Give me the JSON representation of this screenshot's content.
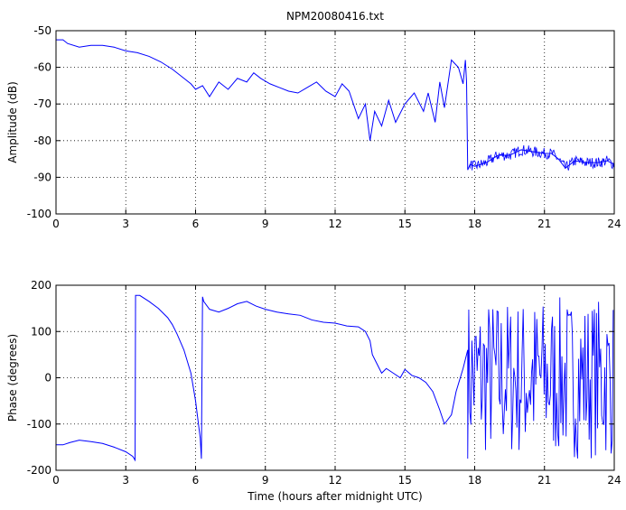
{
  "chart_data": [
    {
      "type": "line",
      "title": "NPM20080416.txt",
      "xlabel": "",
      "ylabel": "Amplitude (dB)",
      "xlim": [
        0,
        24
      ],
      "ylim": [
        -100,
        -50
      ],
      "xticks": [
        "0",
        "3",
        "6",
        "9",
        "12",
        "15",
        "18",
        "21",
        "24"
      ],
      "yticks": [
        "-50",
        "-60",
        "-70",
        "-80",
        "-90",
        "-100"
      ],
      "grid": true,
      "line_color": "#0000ff",
      "series": [
        {
          "x": [
            0,
            0.3,
            0.5,
            1,
            1.5,
            2,
            2.5,
            3,
            3.5,
            4,
            4.5,
            5,
            5.5,
            5.8,
            6,
            6.3,
            6.6,
            7,
            7.4,
            7.8,
            8.2,
            8.5,
            8.8,
            9.2,
            9.6,
            10,
            10.4,
            10.8,
            11.2,
            11.6,
            12,
            12.3,
            12.6,
            13,
            13.3,
            13.5,
            13.7,
            14,
            14.3,
            14.6,
            15,
            15.4,
            15.8,
            16,
            16.3,
            16.5,
            16.7,
            17,
            17.3,
            17.5,
            17.6,
            17.65,
            17.7,
            17.8,
            18,
            18.5,
            19,
            19.5,
            20,
            20.5,
            21,
            21.3,
            21.6,
            21.9,
            22.3,
            22.8,
            23.3,
            23.7,
            24
          ],
          "y": [
            -52.5,
            -52.5,
            -53.5,
            -54.5,
            -54,
            -54,
            -54.5,
            -55.5,
            -56,
            -57,
            -58.5,
            -60.5,
            -63,
            -64.5,
            -66,
            -65,
            -68,
            -64,
            -66,
            -63,
            -64,
            -61.5,
            -63,
            -64.5,
            -65.5,
            -66.5,
            -67,
            -65.5,
            -64,
            -66.5,
            -68,
            -64.5,
            -66.5,
            -74,
            -70,
            -80,
            -72,
            -76,
            -69,
            -75,
            -70,
            -67,
            -72,
            -67,
            -75,
            -64,
            -71,
            -58,
            -60,
            -64.5,
            -58,
            -64,
            -88,
            -86.5,
            -87,
            -86,
            -84,
            -84,
            -82.5,
            -83,
            -83.5,
            -83.5,
            -85,
            -87.5,
            -85.5,
            -86,
            -86,
            -85.5,
            -86.5
          ]
        }
      ]
    },
    {
      "type": "line",
      "title": "",
      "xlabel": "Time (hours after midnight UTC)",
      "ylabel": "Phase (degrees)",
      "xlim": [
        0,
        24
      ],
      "ylim": [
        -200,
        200
      ],
      "xticks": [
        "0",
        "3",
        "6",
        "9",
        "12",
        "15",
        "18",
        "21",
        "24"
      ],
      "yticks": [
        "200",
        "100",
        "0",
        "-100",
        "-200"
      ],
      "grid": true,
      "line_color": "#0000ff",
      "series": [
        {
          "x": [
            0,
            0.3,
            0.6,
            1,
            1.5,
            2,
            2.5,
            3,
            3.3,
            3.4,
            3.42,
            3.6,
            4,
            4.4,
            4.8,
            5,
            5.2,
            5.5,
            5.8,
            6,
            6.1,
            6.2,
            6.25,
            6.3,
            6.35,
            6.6,
            7,
            7.4,
            7.8,
            8.2,
            8.6,
            9,
            9.5,
            10,
            10.5,
            11,
            11.5,
            12,
            12.5,
            13,
            13.3,
            13.5,
            13.6,
            13.8,
            14,
            14.2,
            14.5,
            14.8,
            15,
            15.3,
            15.6,
            15.9,
            16.2,
            16.5,
            16.7,
            17,
            17.2,
            17.5,
            17.7
          ],
          "y": [
            -145,
            -145,
            -140,
            -135,
            -138,
            -142,
            -150,
            -160,
            -170,
            -178,
            178,
            178,
            165,
            150,
            130,
            115,
            95,
            60,
            10,
            -50,
            -90,
            -130,
            -175,
            175,
            165,
            148,
            142,
            150,
            160,
            165,
            155,
            148,
            142,
            138,
            135,
            125,
            120,
            118,
            112,
            110,
            100,
            80,
            50,
            30,
            10,
            20,
            10,
            0,
            18,
            5,
            0,
            -10,
            -30,
            -70,
            -100,
            -80,
            -30,
            20,
            60
          ]
        }
      ]
    }
  ]
}
